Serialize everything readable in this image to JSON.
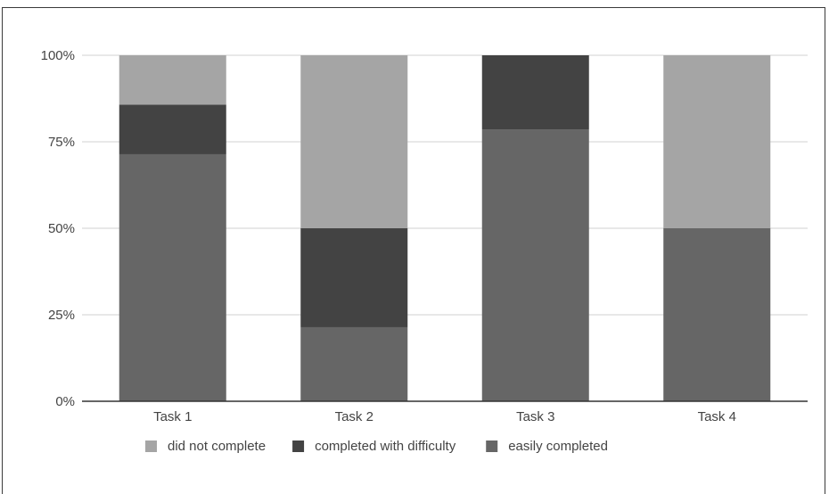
{
  "chart_data": {
    "type": "bar",
    "stacked": true,
    "stack_mode": "percent",
    "categories": [
      "Task 1",
      "Task 2",
      "Task 3",
      "Task 4"
    ],
    "series": [
      {
        "name": "easily completed",
        "color": "#666666",
        "values": [
          71.4,
          21.4,
          78.6,
          50
        ]
      },
      {
        "name": "completed with difficulty",
        "color": "#434343",
        "values": [
          14.3,
          28.6,
          21.4,
          0
        ]
      },
      {
        "name": "did not complete",
        "color": "#a5a5a5",
        "values": [
          14.3,
          50,
          0,
          50
        ]
      }
    ],
    "legend_order": [
      "did not complete",
      "completed with difficulty",
      "easily completed"
    ],
    "legend_position": "bottom",
    "ylim": [
      0,
      100
    ],
    "yticks": [
      0,
      25,
      50,
      75,
      100
    ],
    "ytick_labels": [
      "0%",
      "25%",
      "50%",
      "75%",
      "100%"
    ],
    "grid": true,
    "title": "",
    "xlabel": "",
    "ylabel": ""
  }
}
